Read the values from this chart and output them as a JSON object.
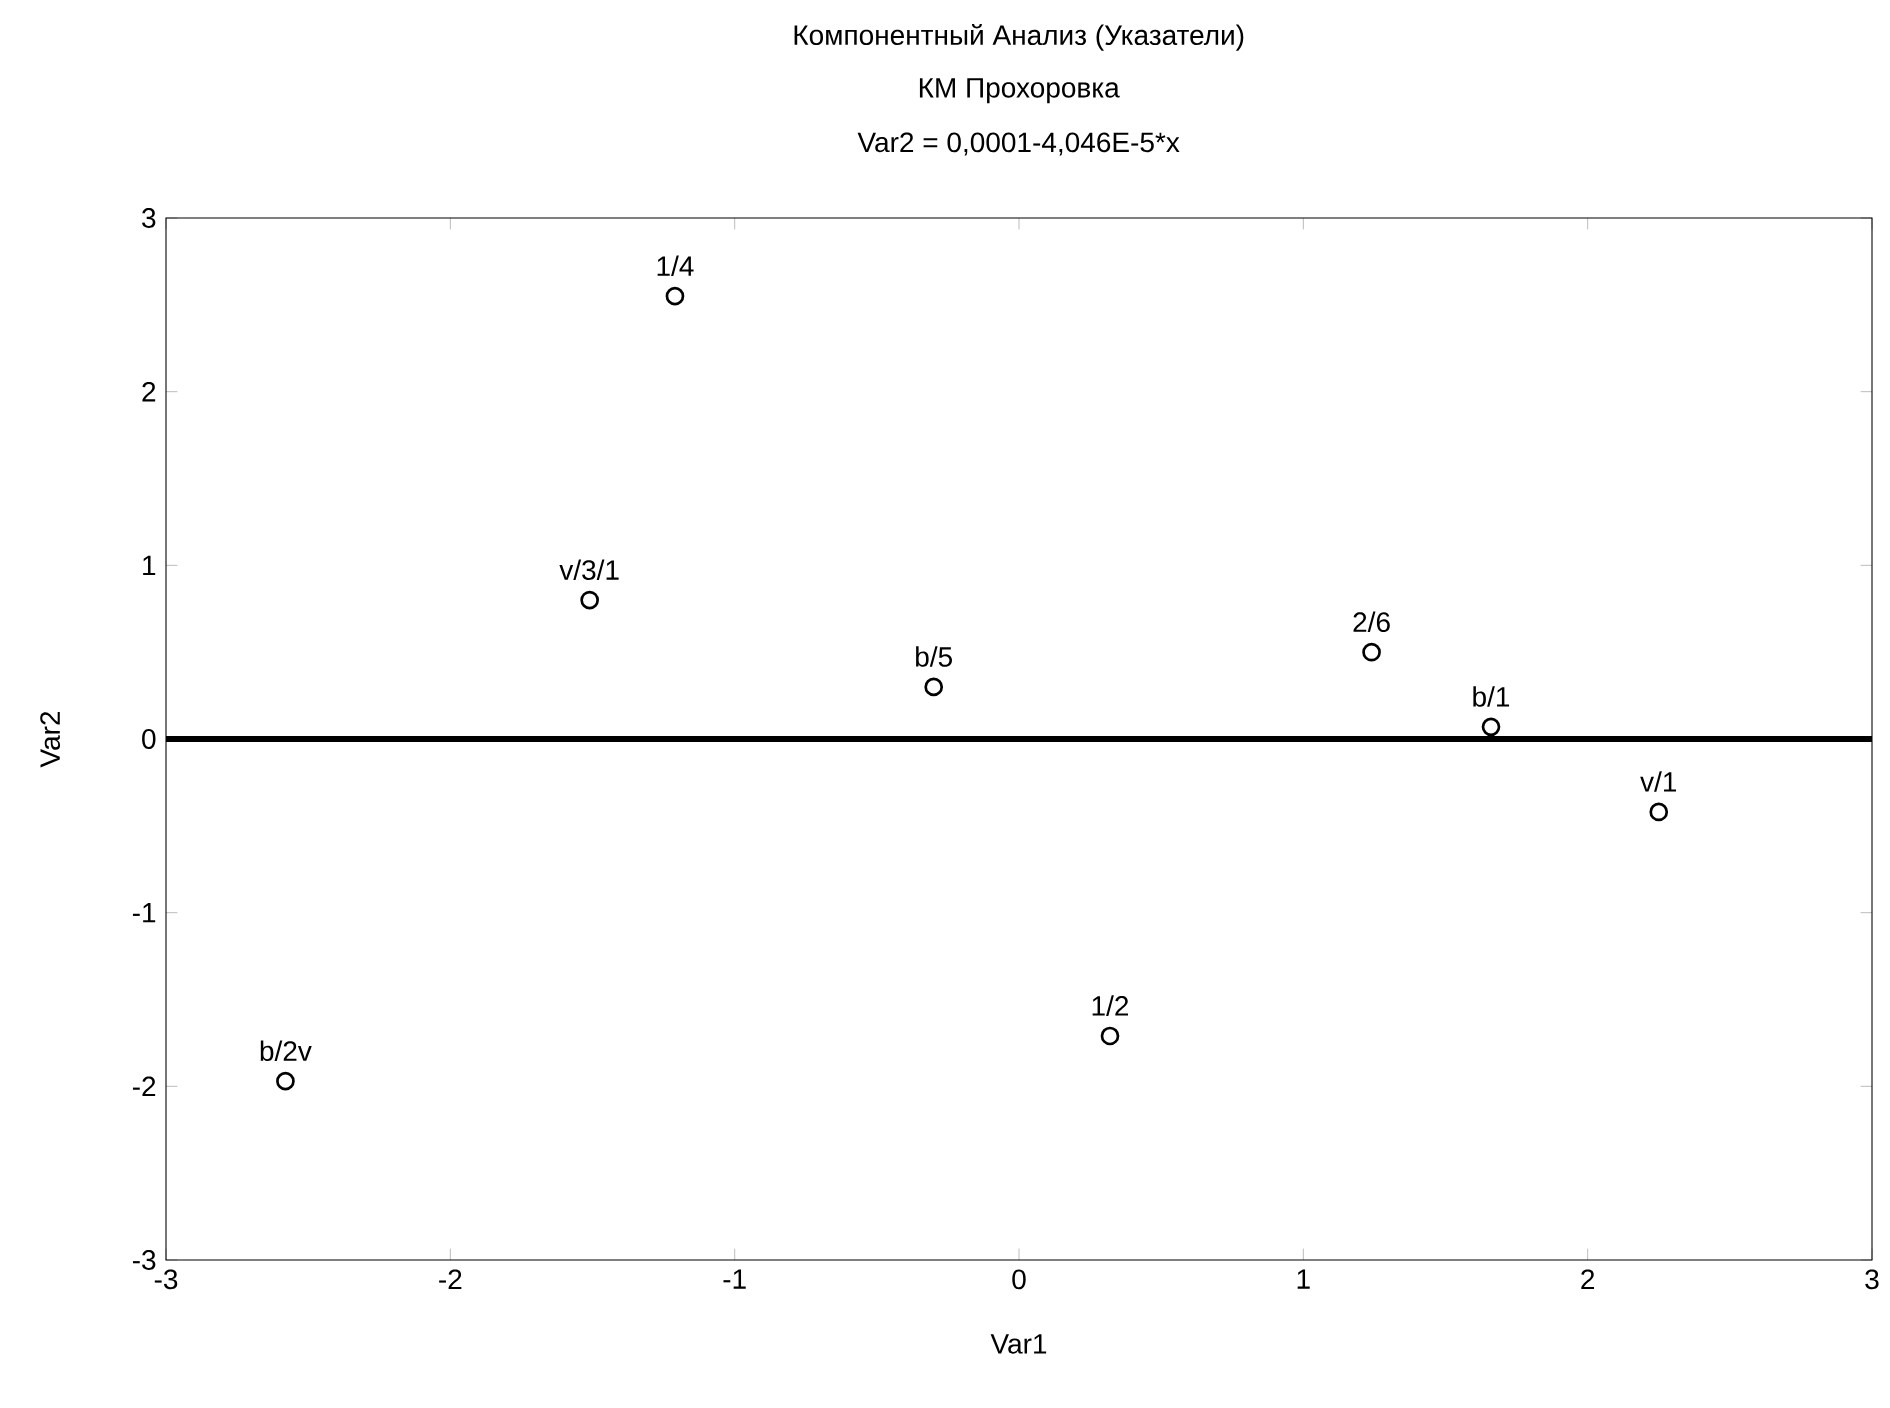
{
  "chart_data": {
    "type": "scatter",
    "title": "Компонентный Анализ (Указатели)",
    "subtitle": "КМ Прохоровка",
    "xlabel": "Var1",
    "ylabel": "Var2",
    "series": [
      {
        "color": "#000000",
        "x": [
          -1.21,
          -1.51,
          -0.3,
          1.24,
          1.66,
          2.25,
          0.32,
          -2.58
        ],
        "values": [
          2.55,
          0.8,
          0.3,
          0.5,
          0.07,
          -0.42,
          -1.71,
          -1.97
        ]
      },
      {
        "type": "line",
        "color": "#000000",
        "line_style": "solid",
        "marker": "none",
        "x": [
          -3,
          3
        ],
        "values": [
          0,
          0
        ]
      }
    ],
    "annotations": [
      "Var2 = 0,0001-4,046E-5*x",
      {
        "text": "1/4",
        "x": -1.21,
        "y": 2.55
      },
      {
        "text": "v/3/1",
        "x": -1.51,
        "y": 0.8
      },
      {
        "text": "b/5",
        "x": -0.3,
        "y": 0.3
      },
      {
        "text": "2/6",
        "x": 1.24,
        "y": 0.5
      },
      {
        "text": "b/1",
        "x": 1.66,
        "y": 0.07
      },
      {
        "text": "v/1",
        "x": 2.25,
        "y": -0.42
      },
      {
        "text": "1/2",
        "x": 0.32,
        "y": -1.71
      },
      {
        "text": "b/2v",
        "x": -2.58,
        "y": -1.97
      }
    ],
    "xlim": [
      -3,
      3
    ],
    "ylim": [
      -3,
      3
    ],
    "xticks": [
      -3,
      -2,
      -1,
      0,
      1,
      2,
      3
    ],
    "yticks": [
      -3,
      -2,
      -1,
      0,
      1,
      2,
      3
    ],
    "grid": false,
    "marker": "circle"
  }
}
